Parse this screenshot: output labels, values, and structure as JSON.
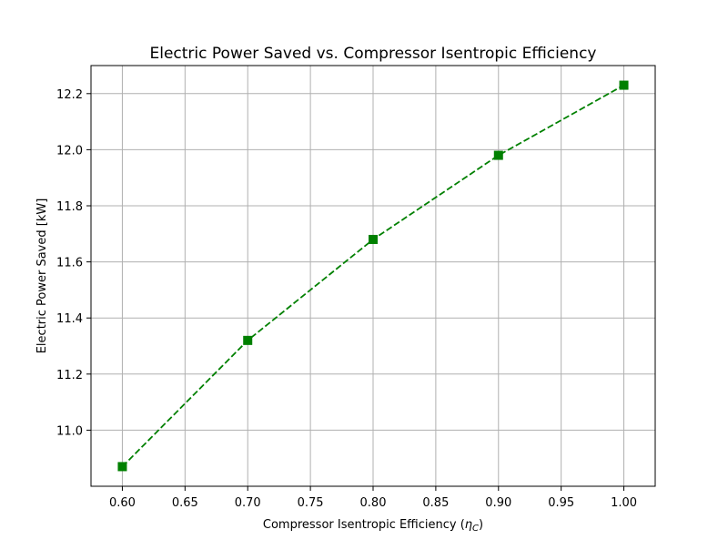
{
  "chart_data": {
    "type": "line",
    "title": "Electric Power Saved vs. Compressor Isentropic Efficiency",
    "xlabel": "Compressor Isentropic Efficiency (ηC)",
    "xlabel_parts": {
      "prefix": "Compressor Isentropic Efficiency (",
      "symbol": "η",
      "subscript": "C",
      "suffix": ")"
    },
    "ylabel": "Electric Power Saved [kW]",
    "xlim": [
      0.575,
      1.025
    ],
    "ylim": [
      10.8,
      12.3
    ],
    "xticks": [
      0.6,
      0.65,
      0.7,
      0.75,
      0.8,
      0.85,
      0.9,
      0.95,
      1.0
    ],
    "xtick_labels": [
      "0.60",
      "0.65",
      "0.70",
      "0.75",
      "0.80",
      "0.85",
      "0.90",
      "0.95",
      "1.00"
    ],
    "yticks": [
      11.0,
      11.2,
      11.4,
      11.6,
      11.8,
      12.0,
      12.2
    ],
    "ytick_labels": [
      "11.0",
      "11.2",
      "11.4",
      "11.6",
      "11.8",
      "12.0",
      "12.2"
    ],
    "grid": true,
    "series": [
      {
        "x": [
          0.6,
          0.7,
          0.8,
          0.9,
          1.0
        ],
        "y": [
          10.87,
          11.32,
          11.68,
          11.98,
          12.23
        ],
        "color": "#008000",
        "line_style": "dashed",
        "marker": "square"
      }
    ]
  }
}
